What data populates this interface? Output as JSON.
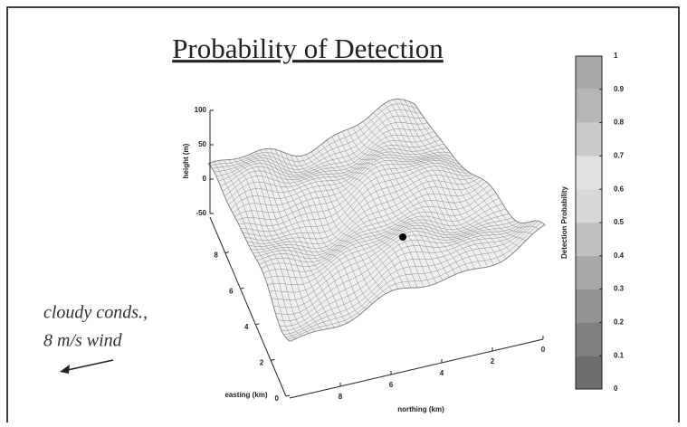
{
  "chart_data": {
    "type": "surface3d",
    "title": "Probability of Detection",
    "annotation": [
      "cloudy conds.,",
      "8 m/s wind"
    ],
    "zlabel": "height (m)",
    "zlim": [
      -50,
      100
    ],
    "zticks": [
      100,
      50,
      0,
      -50
    ],
    "xlabel": "easting (km)",
    "xlim": [
      0,
      10
    ],
    "xticks": [
      0,
      2,
      4,
      6,
      8
    ],
    "ylabel": "northing (km)",
    "ylim": [
      0,
      10
    ],
    "yticks": [
      0,
      2,
      4,
      6,
      8
    ],
    "colorbar": {
      "label": "Detection Probability",
      "lim": [
        0,
        1
      ],
      "ticks": [
        0,
        0.1,
        0.2,
        0.3,
        0.4,
        0.5,
        0.6,
        0.7,
        0.8,
        0.9,
        1
      ],
      "colors": [
        "#6e6e6e",
        "#808080",
        "#939393",
        "#a8a8a8",
        "#c0c0c0",
        "#d8d8d8",
        "#e2e2e2",
        "#cacaca",
        "#b6b6b6",
        "#a8a8a8"
      ]
    }
  }
}
